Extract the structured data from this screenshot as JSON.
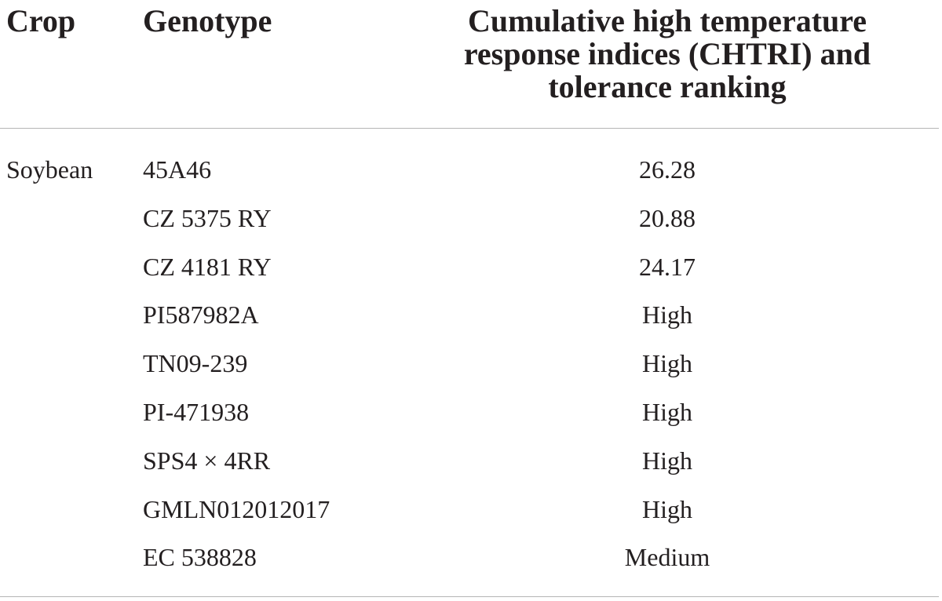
{
  "headers": {
    "crop": "Crop",
    "genotype": "Genotype",
    "chtri_line1": "Cumulative high temperature",
    "chtri_line2": "response indices (CHTRI) and",
    "chtri_line3": "tolerance ranking"
  },
  "rows": [
    {
      "crop": "Soybean",
      "genotype": "45A46",
      "value": "26.28"
    },
    {
      "crop": "",
      "genotype": "CZ 5375 RY",
      "value": "20.88"
    },
    {
      "crop": "",
      "genotype": "CZ 4181 RY",
      "value": "24.17"
    },
    {
      "crop": "",
      "genotype": "PI587982A",
      "value": "High"
    },
    {
      "crop": "",
      "genotype": "TN09-239",
      "value": "High"
    },
    {
      "crop": "",
      "genotype": "PI-471938",
      "value": "High"
    },
    {
      "crop": "",
      "genotype": "SPS4 × 4RR",
      "value": "High"
    },
    {
      "crop": "",
      "genotype": "GMLN012012017",
      "value": "High"
    },
    {
      "crop": "",
      "genotype": "EC 538828",
      "value": "Medium"
    }
  ]
}
